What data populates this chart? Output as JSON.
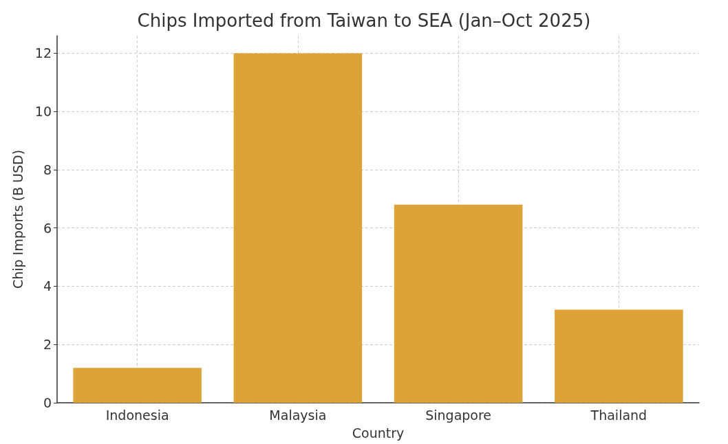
{
  "chart_data": {
    "type": "bar",
    "title": "Chips Imported from Taiwan to SEA (Jan–Oct 2025)",
    "xlabel": "Country",
    "ylabel": "Chip Imports (B USD)",
    "categories": [
      "Indonesia",
      "Malaysia",
      "Singapore",
      "Thailand"
    ],
    "values": [
      1.2,
      12.0,
      6.8,
      3.2
    ],
    "color": "#dba338",
    "ylim": [
      0,
      12.6
    ],
    "yticks": [
      0,
      2,
      4,
      6,
      8,
      10,
      12
    ],
    "grid": true
  }
}
